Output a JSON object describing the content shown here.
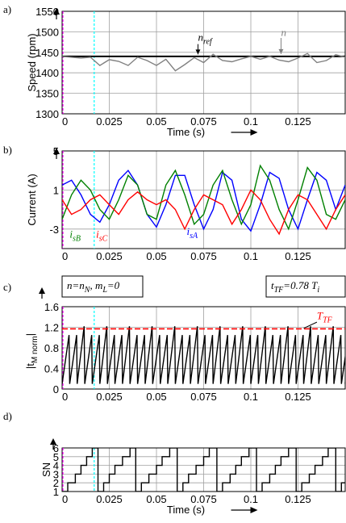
{
  "colors": {
    "speed_trace": "#808080",
    "reference": "#000000",
    "phase_a": "#0000ff",
    "phase_b": "#008000",
    "phase_c": "#ff0000",
    "torque": "#000000",
    "threshold": "#ff0000",
    "marker_start": "#ff00ff",
    "marker_event": "#00ffff",
    "sector": "#000000"
  },
  "chart_data": [
    {
      "id": "a",
      "type": "line",
      "panel_label": "a)",
      "ylabel": "Speed (rpm)",
      "xlabel": "Time  (s)",
      "xlim": [
        0,
        0.15
      ],
      "ylim": [
        1300,
        1550
      ],
      "yticks": [
        1300,
        1350,
        1400,
        1450,
        1500,
        1550
      ],
      "xticks": [
        0,
        0.025,
        0.05,
        0.075,
        0.1,
        0.125
      ],
      "xtick_labels": [
        "0",
        "0.025",
        "0.05",
        "0.075",
        "0.1",
        "0.125"
      ],
      "grid": true,
      "markers_x": [
        0,
        0.017
      ],
      "series": [
        {
          "name": "n_ref",
          "style": "solid",
          "x": [
            0,
            0.15
          ],
          "y": [
            1440,
            1440
          ]
        },
        {
          "name": "n",
          "x": [
            0,
            0.005,
            0.01,
            0.015,
            0.02,
            0.025,
            0.03,
            0.035,
            0.04,
            0.045,
            0.05,
            0.055,
            0.06,
            0.065,
            0.07,
            0.075,
            0.08,
            0.085,
            0.09,
            0.095,
            0.1,
            0.105,
            0.11,
            0.115,
            0.12,
            0.125,
            0.13,
            0.135,
            0.14,
            0.145,
            0.15
          ],
          "y": [
            1440,
            1438,
            1436,
            1438,
            1418,
            1432,
            1428,
            1418,
            1438,
            1430,
            1418,
            1433,
            1405,
            1420,
            1437,
            1425,
            1445,
            1430,
            1427,
            1434,
            1440,
            1433,
            1440,
            1431,
            1427,
            1436,
            1447,
            1425,
            1430,
            1444,
            1438
          ]
        }
      ],
      "annotations": [
        {
          "text": "n",
          "sub": "ref",
          "color": "#000000",
          "x": 0.072,
          "y": 1478
        },
        {
          "text": "n",
          "sub": "",
          "color": "#808080",
          "x": 0.116,
          "y": 1490
        }
      ]
    },
    {
      "id": "b",
      "type": "line",
      "panel_label": "b)",
      "ylabel": "Current  (A)",
      "xlabel": "",
      "xlim": [
        0,
        0.15
      ],
      "ylim": [
        -5,
        5
      ],
      "yticks": [
        5,
        1,
        -3
      ],
      "xticks": [
        0,
        0.025,
        0.05,
        0.075,
        0.1,
        0.125
      ],
      "xtick_labels": [
        "0",
        "0.025",
        "0.05",
        "0.075",
        "0.1",
        "0.125"
      ],
      "grid": true,
      "markers_x": [
        0,
        0.017
      ],
      "series": [
        {
          "name": "i_sA",
          "x": [
            0,
            0.005,
            0.01,
            0.015,
            0.02,
            0.025,
            0.03,
            0.035,
            0.04,
            0.045,
            0.05,
            0.055,
            0.06,
            0.065,
            0.07,
            0.075,
            0.08,
            0.085,
            0.09,
            0.095,
            0.1,
            0.105,
            0.11,
            0.115,
            0.12,
            0.125,
            0.13,
            0.135,
            0.14,
            0.145,
            0.15
          ],
          "y": [
            1.5,
            2.0,
            0.5,
            -1.5,
            -2.3,
            -0.5,
            2.0,
            3.0,
            1.5,
            -1.5,
            -2.8,
            -0.5,
            2.5,
            2.5,
            -0.5,
            -3.0,
            -1.0,
            2.8,
            2.0,
            -2.0,
            -3.2,
            -0.5,
            2.8,
            2.2,
            -1.0,
            -3.0,
            0.0,
            2.8,
            2.0,
            -1.0,
            1.5
          ]
        },
        {
          "name": "i_sB",
          "x": [
            0,
            0.005,
            0.01,
            0.015,
            0.02,
            0.025,
            0.03,
            0.035,
            0.04,
            0.045,
            0.05,
            0.055,
            0.06,
            0.065,
            0.07,
            0.075,
            0.08,
            0.085,
            0.09,
            0.095,
            0.1,
            0.105,
            0.11,
            0.115,
            0.12,
            0.125,
            0.13,
            0.135,
            0.14,
            0.145,
            0.15
          ],
          "y": [
            -2.0,
            0.5,
            2.0,
            1.0,
            -1.0,
            -2.0,
            0.0,
            2.5,
            1.5,
            -1.5,
            -2.0,
            1.5,
            3.0,
            0.5,
            -2.5,
            -1.5,
            1.5,
            3.0,
            0.0,
            -2.5,
            -0.5,
            3.5,
            2.0,
            -1.0,
            -3.0,
            0.0,
            3.3,
            2.0,
            -1.5,
            -2.0,
            0.0
          ]
        },
        {
          "name": "i_sC",
          "x": [
            0,
            0.005,
            0.01,
            0.015,
            0.02,
            0.025,
            0.03,
            0.035,
            0.04,
            0.045,
            0.05,
            0.055,
            0.06,
            0.065,
            0.07,
            0.075,
            0.08,
            0.085,
            0.09,
            0.095,
            0.1,
            0.105,
            0.11,
            0.115,
            0.12,
            0.125,
            0.13,
            0.135,
            0.14,
            0.145,
            0.15
          ],
          "y": [
            0.0,
            -1.5,
            -1.0,
            0.0,
            0.5,
            -0.5,
            -1.5,
            0.0,
            0.8,
            0.0,
            -0.5,
            0.0,
            -1.0,
            -3.0,
            -1.0,
            0.5,
            0.0,
            -0.5,
            -2.5,
            -1.0,
            1.0,
            0.0,
            -2.0,
            -3.5,
            -1.0,
            0.5,
            0.0,
            -1.5,
            -3.0,
            -1.0,
            0.5
          ]
        }
      ],
      "annotations": [
        {
          "text": "i",
          "sub": "sB",
          "color": "#008000",
          "x": 0.004,
          "y": -3.9
        },
        {
          "text": "i",
          "sub": "sC",
          "color": "#ff0000",
          "x": 0.018,
          "y": -3.9
        },
        {
          "text": "i",
          "sub": "sA",
          "color": "#0000ff",
          "x": 0.066,
          "y": -3.6
        }
      ]
    },
    {
      "id": "c",
      "type": "line",
      "panel_label": "c)",
      "ylabel": "|t",
      "ylabel_sub": "M norm",
      "ylabel_end": "|",
      "xlabel": "",
      "xlim": [
        0,
        0.15
      ],
      "ylim": [
        0,
        1.6
      ],
      "yticks": [
        0,
        0.4,
        0.8,
        1.2,
        1.6
      ],
      "xticks": [
        0,
        0.025,
        0.05,
        0.075,
        0.1,
        0.125
      ],
      "xtick_labels": [
        "0",
        "0.025",
        "0.05",
        "0.075",
        "0.1",
        "0.125"
      ],
      "grid": true,
      "markers_x": [
        0,
        0.017
      ],
      "series": [
        {
          "name": "|t_M norm|",
          "sawtooth_period": 0.004,
          "low": 0.1,
          "high": 1.05,
          "peak_every": 3,
          "peak": 1.22
        },
        {
          "name": "T_TF",
          "style": "dashed",
          "x": [
            0,
            0.15
          ],
          "y": [
            1.17,
            1.17
          ]
        }
      ],
      "boxes": [
        {
          "text_parts": [
            [
              "n=n",
              ""
            ],
            [
              "N",
              "sub"
            ],
            [
              ", m",
              ""
            ],
            [
              "L",
              "sub"
            ],
            [
              "=0",
              ""
            ]
          ]
        },
        {
          "text_parts": [
            [
              "t",
              ""
            ],
            [
              "TF",
              "sub"
            ],
            [
              "=0.78 T",
              ""
            ],
            [
              "i",
              "sub"
            ]
          ]
        }
      ],
      "annotations": [
        {
          "text": "T",
          "sub": "TF",
          "color": "#ff0000",
          "x": 0.135,
          "y": 1.36
        }
      ]
    },
    {
      "id": "d",
      "type": "line",
      "panel_label": "d)",
      "ylabel": "SN",
      "xlabel": "Time  (s)",
      "xlim": [
        0,
        0.15
      ],
      "ylim": [
        1,
        6
      ],
      "yticks": [
        1,
        2,
        3,
        4,
        5,
        6
      ],
      "xticks": [
        0,
        0.025,
        0.05,
        0.075,
        0.1,
        0.125
      ],
      "xtick_labels": [
        "0",
        "0.025",
        "0.05",
        "0.075",
        "0.1",
        "0.125"
      ],
      "grid": true,
      "markers_x": [
        0,
        0.017
      ],
      "series": [
        {
          "name": "SN",
          "step": true,
          "x": [
            0,
            0.003,
            0.007,
            0.01,
            0.013,
            0.016,
            0.019,
            0.022,
            0.025,
            0.028,
            0.032,
            0.036,
            0.039,
            0.042,
            0.046,
            0.05,
            0.053,
            0.057,
            0.061,
            0.064,
            0.067,
            0.071,
            0.075,
            0.078,
            0.082,
            0.085,
            0.089,
            0.092,
            0.095,
            0.099,
            0.103,
            0.106,
            0.11,
            0.113,
            0.116,
            0.12,
            0.124,
            0.127,
            0.131,
            0.134,
            0.138,
            0.141,
            0.145,
            0.148
          ],
          "y": [
            1,
            2,
            3,
            4,
            5,
            6,
            1,
            2,
            3,
            4,
            5,
            6,
            1,
            2,
            3,
            4,
            5,
            6,
            1,
            2,
            3,
            4,
            5,
            6,
            1,
            2,
            3,
            4,
            5,
            6,
            1,
            2,
            3,
            4,
            5,
            6,
            1,
            2,
            3,
            4,
            5,
            6,
            1,
            2
          ]
        }
      ]
    }
  ]
}
